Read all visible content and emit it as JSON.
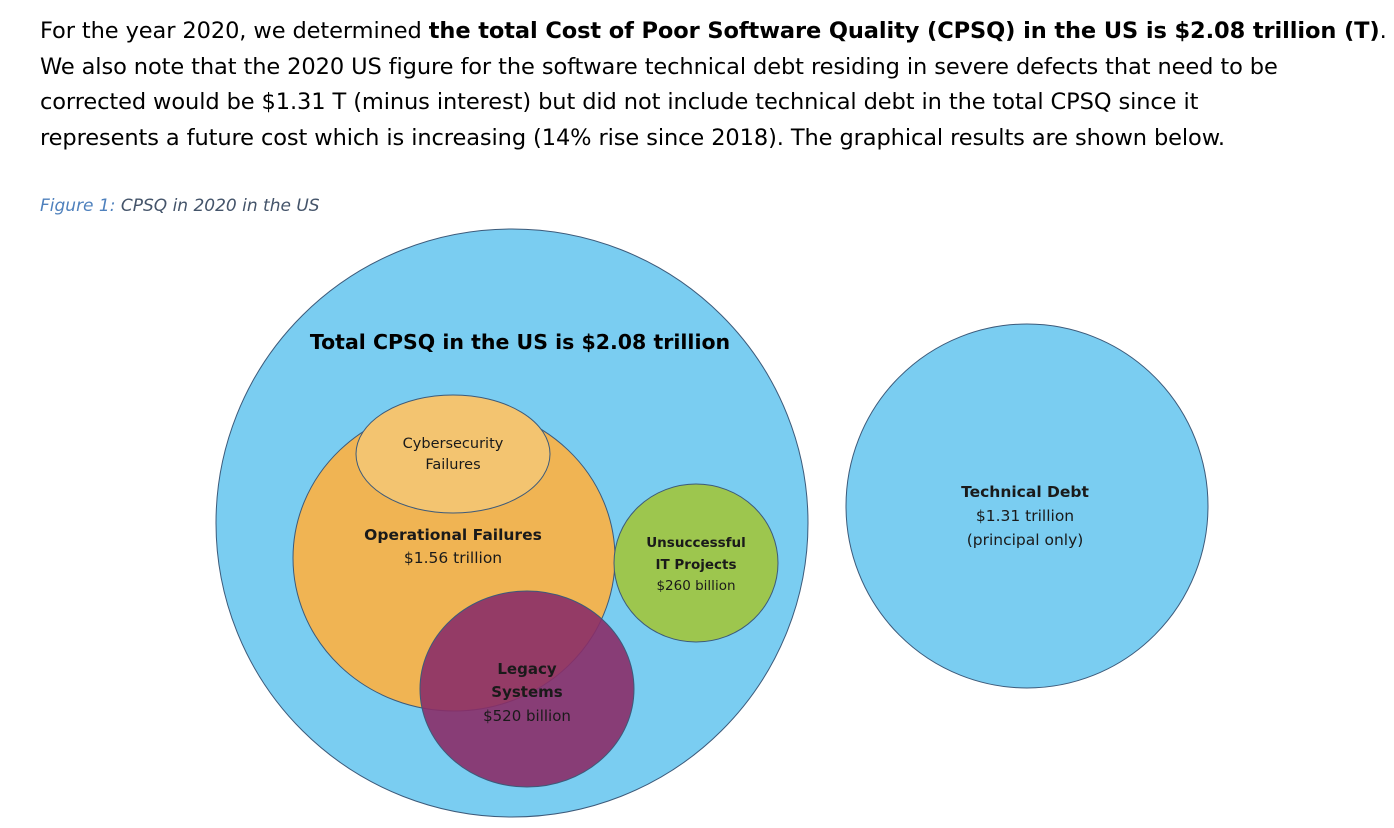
{
  "paragraph": {
    "l1_pre": "For the year 2020, we determined ",
    "l1_bold": "the total Cost of Poor Software Quality (CPSQ) in the US is $2.08 trillion (T)",
    "l1_post": ".",
    "l2": "We also note that the 2020 US figure for the software technical debt residing in severe defects that need to be",
    "l3": "corrected would be $1.31 T (minus interest) but did not include technical debt in the total CPSQ since it",
    "l4": "represents a future cost which is increasing (14% rise since 2018). The graphical results are shown below."
  },
  "caption": {
    "label": "Figure 1:",
    "text": " CPSQ in 2020 in the US"
  },
  "diagram": {
    "total_label": "Total CPSQ in the US is $2.08 trillion",
    "cyber_l1": "Cybersecurity",
    "cyber_l2": "Failures",
    "ops_l1": "Operational Failures",
    "ops_l2": "$1.56 trillion",
    "unsucc_l1": "Unsuccessful",
    "unsucc_l2": "IT Projects",
    "unsucc_l3": "$260 billion",
    "legacy_l1": "Legacy",
    "legacy_l2": "Systems",
    "legacy_l3": "$520 billion",
    "debt_l1": "Technical Debt",
    "debt_l2": "$1.31 trillion",
    "debt_l3": "(principal only)",
    "colors": {
      "blue": "#7acdf1",
      "orange": "#f0b453",
      "light_orange": "#f3c470",
      "green": "#9dc64e",
      "purple": "#8a2d68",
      "stroke": "#3c5a7a"
    }
  }
}
